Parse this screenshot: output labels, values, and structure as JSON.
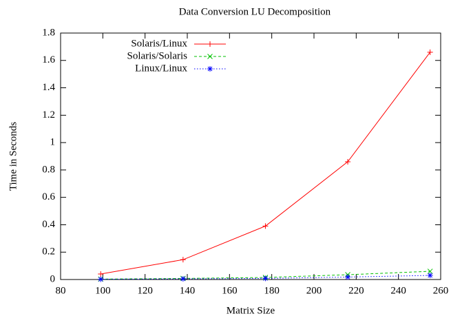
{
  "chart_data": {
    "type": "line",
    "title": "Data Conversion LU Decomposition",
    "xlabel": "Matrix Size",
    "ylabel": "Time in Seconds",
    "x": [
      99,
      138,
      177,
      216,
      255
    ],
    "series": [
      {
        "name": "Solaris/Linux",
        "color": "#ff0000",
        "marker": "plus",
        "dash": "solid",
        "values": [
          0.04,
          0.145,
          0.39,
          0.86,
          1.66
        ]
      },
      {
        "name": "Solaris/Solaris",
        "color": "#00c000",
        "marker": "cross",
        "dash": "dashed",
        "values": [
          0.003,
          0.008,
          0.015,
          0.035,
          0.06
        ]
      },
      {
        "name": "Linux/Linux",
        "color": "#0000ff",
        "marker": "star",
        "dash": "dotted",
        "values": [
          0.002,
          0.005,
          0.008,
          0.018,
          0.03
        ]
      }
    ],
    "xlim": [
      80,
      260
    ],
    "xticks": [
      80,
      100,
      120,
      140,
      160,
      180,
      200,
      220,
      240,
      260
    ],
    "ylim": [
      0,
      1.8
    ],
    "yticks": [
      0,
      0.2,
      0.4,
      0.6,
      0.8,
      1,
      1.2,
      1.4,
      1.6,
      1.8
    ],
    "legend": "top-left"
  }
}
